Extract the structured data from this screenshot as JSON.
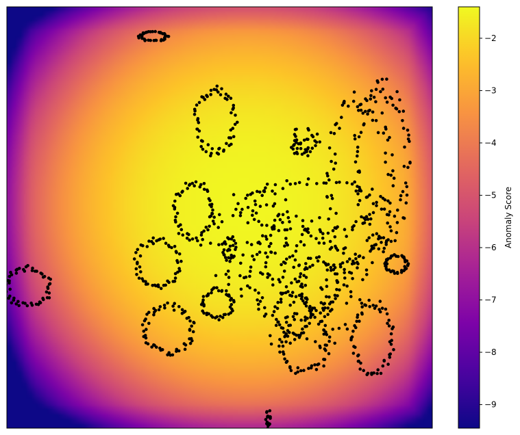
{
  "chart_data": {
    "type": "heatmap",
    "title": "",
    "xlabel": "",
    "ylabel": "",
    "x_ticks_shown": false,
    "y_ticks_shown": false,
    "grid": false,
    "colormap": "plasma",
    "colorbar": {
      "label": "Anomaly Score",
      "min": -9.45,
      "max": -1.4,
      "ticks": [
        -9,
        -8,
        -7,
        -6,
        -5,
        -4,
        -3,
        -2
      ],
      "tick_labels": [
        "−9",
        "−8",
        "−7",
        "−6",
        "−5",
        "−4",
        "−3",
        "−2"
      ]
    },
    "heatmap": {
      "description_peak": [
        0.56,
        0.47
      ],
      "peak_value": -1.45,
      "corner_value": -9.4,
      "edge_value": -4.3
    },
    "scatter": {
      "marker_color": "#000000",
      "clusters": [
        {
          "shape": "ring",
          "cx": 0.345,
          "cy": 0.07,
          "rx": 0.032,
          "ry": 0.011,
          "n": 38
        },
        {
          "shape": "loop",
          "cx": 0.05,
          "cy": 0.665,
          "rx": 0.05,
          "ry": 0.045,
          "n": 55
        },
        {
          "shape": "loop",
          "cx": 0.49,
          "cy": 0.27,
          "rx": 0.045,
          "ry": 0.075,
          "n": 60
        },
        {
          "shape": "loop",
          "cx": 0.44,
          "cy": 0.485,
          "rx": 0.045,
          "ry": 0.065,
          "n": 55
        },
        {
          "shape": "loop",
          "cx": 0.355,
          "cy": 0.61,
          "rx": 0.05,
          "ry": 0.055,
          "n": 55
        },
        {
          "shape": "loop",
          "cx": 0.38,
          "cy": 0.765,
          "rx": 0.055,
          "ry": 0.055,
          "n": 60
        },
        {
          "shape": "loop",
          "cx": 0.495,
          "cy": 0.705,
          "rx": 0.035,
          "ry": 0.035,
          "n": 45
        },
        {
          "shape": "blob",
          "cx": 0.525,
          "cy": 0.575,
          "rx": 0.018,
          "ry": 0.032,
          "n": 30
        },
        {
          "shape": "blob",
          "cx": 0.7,
          "cy": 0.32,
          "rx": 0.04,
          "ry": 0.035,
          "n": 40
        },
        {
          "shape": "loop",
          "cx": 0.88,
          "cy": 0.375,
          "rx": 0.06,
          "ry": 0.18,
          "n": 90
        },
        {
          "shape": "loop",
          "cx": 0.83,
          "cy": 0.42,
          "rx": 0.07,
          "ry": 0.2,
          "n": 90
        },
        {
          "shape": "loop",
          "cx": 0.72,
          "cy": 0.475,
          "rx": 0.16,
          "ry": 0.06,
          "n": 85
        },
        {
          "shape": "scatter",
          "cx": 0.7,
          "cy": 0.66,
          "rx": 0.14,
          "ry": 0.17,
          "n": 130
        },
        {
          "shape": "loop",
          "cx": 0.735,
          "cy": 0.66,
          "rx": 0.045,
          "ry": 0.06,
          "n": 50
        },
        {
          "shape": "loop",
          "cx": 0.86,
          "cy": 0.785,
          "rx": 0.045,
          "ry": 0.08,
          "n": 60
        },
        {
          "shape": "loop",
          "cx": 0.915,
          "cy": 0.61,
          "rx": 0.025,
          "ry": 0.02,
          "n": 40
        },
        {
          "shape": "loop",
          "cx": 0.7,
          "cy": 0.8,
          "rx": 0.055,
          "ry": 0.065,
          "n": 60
        },
        {
          "shape": "loop",
          "cx": 0.67,
          "cy": 0.73,
          "rx": 0.04,
          "ry": 0.05,
          "n": 40
        },
        {
          "shape": "vline",
          "cx": 0.614,
          "cy": 0.985,
          "rx": 0.006,
          "ry": 0.03,
          "n": 22
        },
        {
          "shape": "blob",
          "cx": 0.58,
          "cy": 0.57,
          "rx": 0.14,
          "ry": 0.14,
          "n": 80
        }
      ]
    }
  }
}
